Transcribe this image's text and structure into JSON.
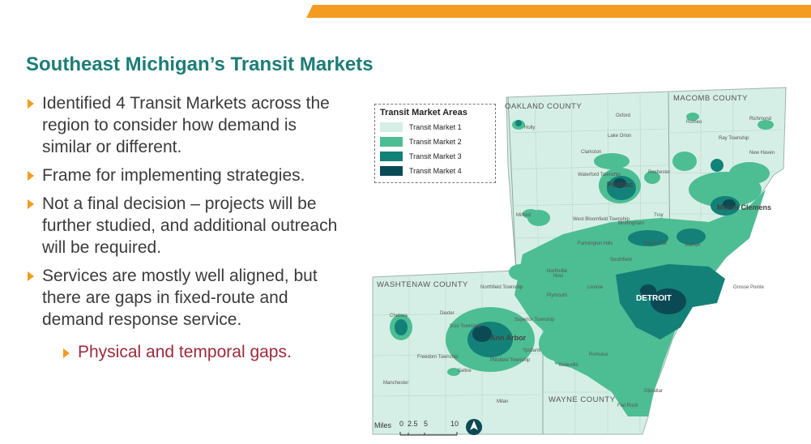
{
  "slide": {
    "title": "Southeast Michigan’s Transit Markets",
    "bullets": [
      "Identified 4 Transit Markets across the region to consider how demand is similar or different.",
      "Frame for implementing strategies.",
      "Not a final decision – projects will be further studied, and additional outreach will be required.",
      "Services are mostly well aligned, but there are gaps in fixed-route and demand response service."
    ],
    "sub_bullet": "Physical and temporal gaps."
  },
  "legend": {
    "title": "Transit Market Areas",
    "items": [
      {
        "label": "Transit Market 1",
        "color": "#d6efe6"
      },
      {
        "label": "Transit Market 2",
        "color": "#4dbd94"
      },
      {
        "label": "Transit Market 3",
        "color": "#138177"
      },
      {
        "label": "Transit Market 4",
        "color": "#0b4a54"
      }
    ]
  },
  "map": {
    "counties": {
      "oakland": "OAKLAND COUNTY",
      "macomb": "MACOMB COUNTY",
      "washtenaw": "WASHTENAW COUNTY",
      "wayne": "WAYNE COUNTY"
    },
    "cities": {
      "detroit": "DETROIT",
      "pontiac": "Pontiac",
      "mount_clemens": "Mount Clemens",
      "ann_arbor": "Ann Arbor",
      "holly": "Holly",
      "oxford": "Oxford",
      "lake_orion": "Lake Orion",
      "romeo": "Romeo",
      "richmond": "Richmond",
      "ray_township": "Ray Township",
      "new_haven": "New Haven",
      "clarkston": "Clarkston",
      "waterford": "Waterford Township",
      "rochester": "Rochester",
      "milford": "Milford",
      "west_bloomfield": "West Bloomfield Township",
      "birmingham": "Birmingham",
      "troy": "Troy",
      "farmington_hills": "Farmington Hills",
      "southfield": "Southfield",
      "royal_oak": "Royal Oak",
      "warren": "Warren",
      "novi": "Novi",
      "northville": "Northville",
      "livonia": "Livonia",
      "plymouth": "Plymouth",
      "grosse_pointe": "Grosse Pointe",
      "chelsea": "Chelsea",
      "dexter": "Dexter",
      "northfield": "Northfield Township",
      "scio": "Scio Township",
      "superior": "Superior Township",
      "ypsilanti": "Ypsilanti",
      "pittsfield": "Pittsfield Township",
      "freedom": "Freedom Township",
      "saline": "Saline",
      "manchester": "Manchester",
      "milan": "Milan",
      "belleville": "Belleville",
      "romulus": "Romulus",
      "flat_rock": "Flat Rock",
      "gibraltar": "Gibraltar"
    }
  },
  "scale": {
    "label": "Miles",
    "ticks": [
      "0",
      "2.5",
      "5",
      "10"
    ]
  }
}
